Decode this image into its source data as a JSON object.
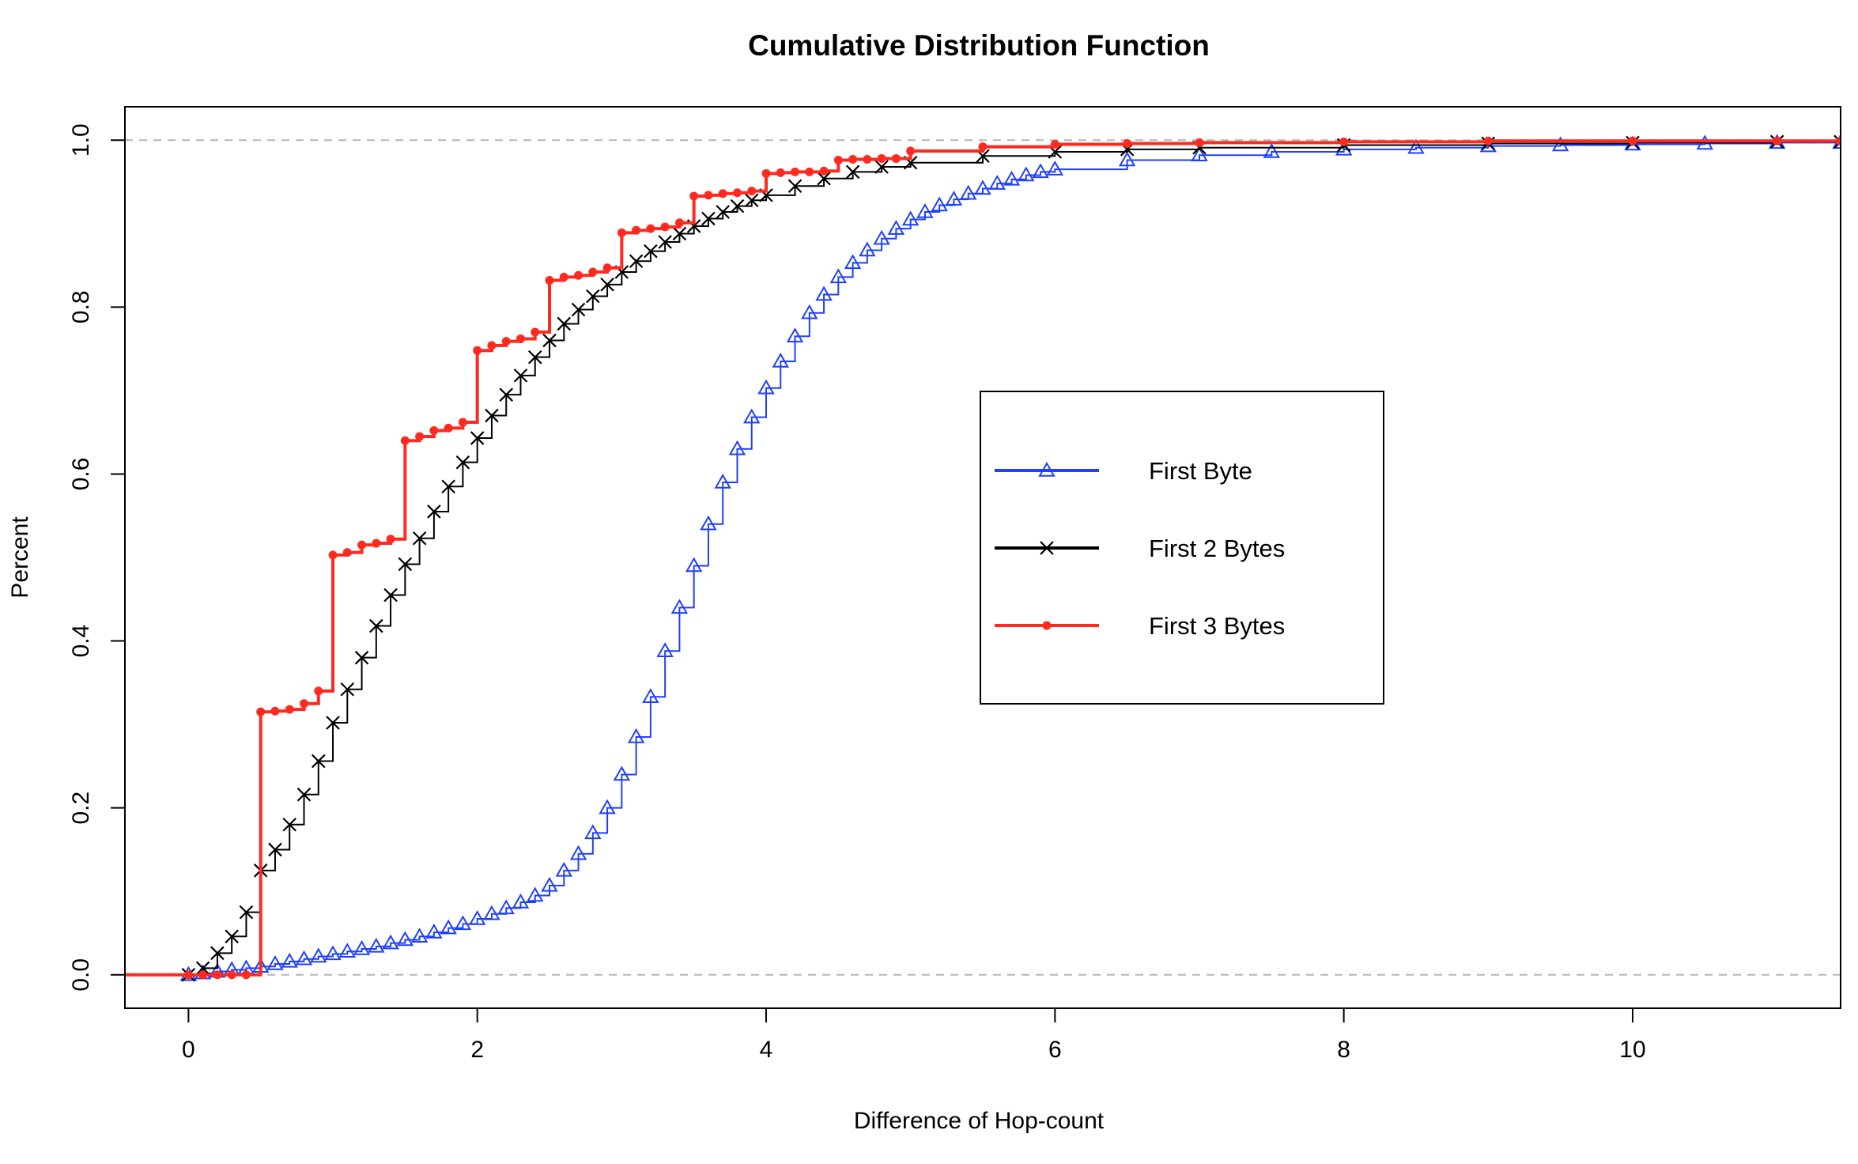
{
  "chart_data": {
    "type": "line",
    "title": "Cumulative Distribution Function",
    "xlabel": "Difference of Hop-count",
    "ylabel": "Percent",
    "xlim": [
      -0.44,
      11.44
    ],
    "ylim": [
      -0.04,
      1.04
    ],
    "x_ticks": [
      0,
      2,
      4,
      6,
      8,
      10
    ],
    "x_tick_labels": [
      "0",
      "2",
      "4",
      "6",
      "8",
      "10"
    ],
    "y_ticks": [
      0.0,
      0.2,
      0.4,
      0.6,
      0.8,
      1.0
    ],
    "y_tick_labels": [
      "0.0",
      "0.2",
      "0.4",
      "0.6",
      "0.8",
      "1.0"
    ],
    "reference_lines": [
      0.0,
      1.0
    ],
    "legend_position": "center-right",
    "x_step": 0.1,
    "x_start": 0,
    "series": [
      {
        "name": "First Byte",
        "color": "#1f3fff",
        "marker": "triangle",
        "step_points": [
          [
            0.0,
            0.0
          ],
          [
            0.1,
            0.002
          ],
          [
            0.2,
            0.004
          ],
          [
            0.3,
            0.006
          ],
          [
            0.4,
            0.008
          ],
          [
            0.5,
            0.01
          ],
          [
            0.6,
            0.013
          ],
          [
            0.7,
            0.016
          ],
          [
            0.8,
            0.019
          ],
          [
            0.9,
            0.022
          ],
          [
            1.0,
            0.025
          ],
          [
            1.1,
            0.028
          ],
          [
            1.2,
            0.031
          ],
          [
            1.3,
            0.034
          ],
          [
            1.4,
            0.038
          ],
          [
            1.5,
            0.042
          ],
          [
            1.6,
            0.046
          ],
          [
            1.7,
            0.051
          ],
          [
            1.8,
            0.056
          ],
          [
            1.9,
            0.061
          ],
          [
            2.0,
            0.067
          ],
          [
            2.1,
            0.073
          ],
          [
            2.2,
            0.08
          ],
          [
            2.3,
            0.087
          ],
          [
            2.4,
            0.095
          ],
          [
            2.5,
            0.107
          ],
          [
            2.6,
            0.125
          ],
          [
            2.7,
            0.145
          ],
          [
            2.8,
            0.17
          ],
          [
            2.9,
            0.2
          ],
          [
            3.0,
            0.24
          ],
          [
            3.1,
            0.285
          ],
          [
            3.2,
            0.333
          ],
          [
            3.3,
            0.388
          ],
          [
            3.4,
            0.44
          ],
          [
            3.5,
            0.49
          ],
          [
            3.6,
            0.54
          ],
          [
            3.7,
            0.59
          ],
          [
            3.8,
            0.63
          ],
          [
            3.9,
            0.668
          ],
          [
            4.0,
            0.703
          ],
          [
            4.1,
            0.735
          ],
          [
            4.2,
            0.765
          ],
          [
            4.3,
            0.793
          ],
          [
            4.4,
            0.815
          ],
          [
            4.5,
            0.836
          ],
          [
            4.6,
            0.853
          ],
          [
            4.7,
            0.868
          ],
          [
            4.8,
            0.882
          ],
          [
            4.9,
            0.894
          ],
          [
            5.0,
            0.905
          ],
          [
            5.1,
            0.914
          ],
          [
            5.2,
            0.922
          ],
          [
            5.3,
            0.929
          ],
          [
            5.4,
            0.936
          ],
          [
            5.5,
            0.942
          ],
          [
            5.6,
            0.948
          ],
          [
            5.7,
            0.953
          ],
          [
            5.8,
            0.958
          ],
          [
            5.9,
            0.962
          ],
          [
            6.0,
            0.965
          ],
          [
            6.5,
            0.976
          ],
          [
            7.0,
            0.982
          ],
          [
            7.5,
            0.986
          ],
          [
            8.0,
            0.989
          ],
          [
            8.5,
            0.991
          ],
          [
            9.0,
            0.993
          ],
          [
            9.5,
            0.994
          ],
          [
            10.0,
            0.995
          ],
          [
            10.5,
            0.996
          ],
          [
            11.0,
            0.997
          ],
          [
            11.44,
            0.997
          ]
        ]
      },
      {
        "name": "First 2 Bytes",
        "color": "#000000",
        "marker": "cross",
        "step_points": [
          [
            0.0,
            0.0
          ],
          [
            0.1,
            0.008
          ],
          [
            0.2,
            0.026
          ],
          [
            0.3,
            0.046
          ],
          [
            0.4,
            0.075
          ],
          [
            0.5,
            0.125
          ],
          [
            0.6,
            0.15
          ],
          [
            0.7,
            0.18
          ],
          [
            0.8,
            0.216
          ],
          [
            0.9,
            0.256
          ],
          [
            1.0,
            0.302
          ],
          [
            1.1,
            0.342
          ],
          [
            1.2,
            0.38
          ],
          [
            1.3,
            0.418
          ],
          [
            1.4,
            0.455
          ],
          [
            1.5,
            0.492
          ],
          [
            1.6,
            0.523
          ],
          [
            1.7,
            0.555
          ],
          [
            1.8,
            0.585
          ],
          [
            1.9,
            0.614
          ],
          [
            2.0,
            0.643
          ],
          [
            2.1,
            0.67
          ],
          [
            2.2,
            0.695
          ],
          [
            2.3,
            0.718
          ],
          [
            2.4,
            0.74
          ],
          [
            2.5,
            0.76
          ],
          [
            2.6,
            0.78
          ],
          [
            2.7,
            0.797
          ],
          [
            2.8,
            0.813
          ],
          [
            2.9,
            0.827
          ],
          [
            3.0,
            0.842
          ],
          [
            3.1,
            0.855
          ],
          [
            3.2,
            0.867
          ],
          [
            3.3,
            0.878
          ],
          [
            3.4,
            0.888
          ],
          [
            3.5,
            0.897
          ],
          [
            3.6,
            0.906
          ],
          [
            3.7,
            0.914
          ],
          [
            3.8,
            0.921
          ],
          [
            3.9,
            0.928
          ],
          [
            4.0,
            0.934
          ],
          [
            4.2,
            0.945
          ],
          [
            4.4,
            0.954
          ],
          [
            4.6,
            0.962
          ],
          [
            4.8,
            0.968
          ],
          [
            5.0,
            0.973
          ],
          [
            5.5,
            0.981
          ],
          [
            6.0,
            0.986
          ],
          [
            6.5,
            0.989
          ],
          [
            7.0,
            0.991
          ],
          [
            8.0,
            0.994
          ],
          [
            9.0,
            0.996
          ],
          [
            10.0,
            0.997
          ],
          [
            11.0,
            0.998
          ],
          [
            11.44,
            0.998
          ]
        ]
      },
      {
        "name": "First 3 Bytes",
        "color": "#ff2a1f",
        "marker": "dot",
        "step_points": [
          [
            0.0,
            0.0
          ],
          [
            0.1,
            0.0
          ],
          [
            0.2,
            0.0
          ],
          [
            0.3,
            0.0
          ],
          [
            0.4,
            0.0
          ],
          [
            0.5,
            0.315
          ],
          [
            0.6,
            0.316
          ],
          [
            0.7,
            0.318
          ],
          [
            0.8,
            0.325
          ],
          [
            0.9,
            0.34
          ],
          [
            1.0,
            0.503
          ],
          [
            1.1,
            0.506
          ],
          [
            1.2,
            0.515
          ],
          [
            1.3,
            0.517
          ],
          [
            1.4,
            0.522
          ],
          [
            1.5,
            0.64
          ],
          [
            1.6,
            0.645
          ],
          [
            1.7,
            0.652
          ],
          [
            1.8,
            0.655
          ],
          [
            1.9,
            0.662
          ],
          [
            2.0,
            0.748
          ],
          [
            2.1,
            0.754
          ],
          [
            2.2,
            0.759
          ],
          [
            2.3,
            0.762
          ],
          [
            2.4,
            0.77
          ],
          [
            2.5,
            0.832
          ],
          [
            2.6,
            0.836
          ],
          [
            2.7,
            0.838
          ],
          [
            2.8,
            0.842
          ],
          [
            2.9,
            0.847
          ],
          [
            3.0,
            0.889
          ],
          [
            3.1,
            0.892
          ],
          [
            3.2,
            0.894
          ],
          [
            3.3,
            0.896
          ],
          [
            3.4,
            0.901
          ],
          [
            3.5,
            0.933
          ],
          [
            3.6,
            0.934
          ],
          [
            3.7,
            0.936
          ],
          [
            3.8,
            0.937
          ],
          [
            3.9,
            0.939
          ],
          [
            4.0,
            0.96
          ],
          [
            4.1,
            0.961
          ],
          [
            4.2,
            0.962
          ],
          [
            4.3,
            0.962
          ],
          [
            4.4,
            0.963
          ],
          [
            4.5,
            0.976
          ],
          [
            4.6,
            0.977
          ],
          [
            4.7,
            0.977
          ],
          [
            4.8,
            0.978
          ],
          [
            4.9,
            0.978
          ],
          [
            5.0,
            0.987
          ],
          [
            5.5,
            0.992
          ],
          [
            6.0,
            0.995
          ],
          [
            6.5,
            0.996
          ],
          [
            7.0,
            0.997
          ],
          [
            8.0,
            0.998
          ],
          [
            9.0,
            0.999
          ],
          [
            10.0,
            0.999
          ],
          [
            11.0,
            0.999
          ],
          [
            11.44,
            0.999
          ]
        ]
      }
    ]
  }
}
